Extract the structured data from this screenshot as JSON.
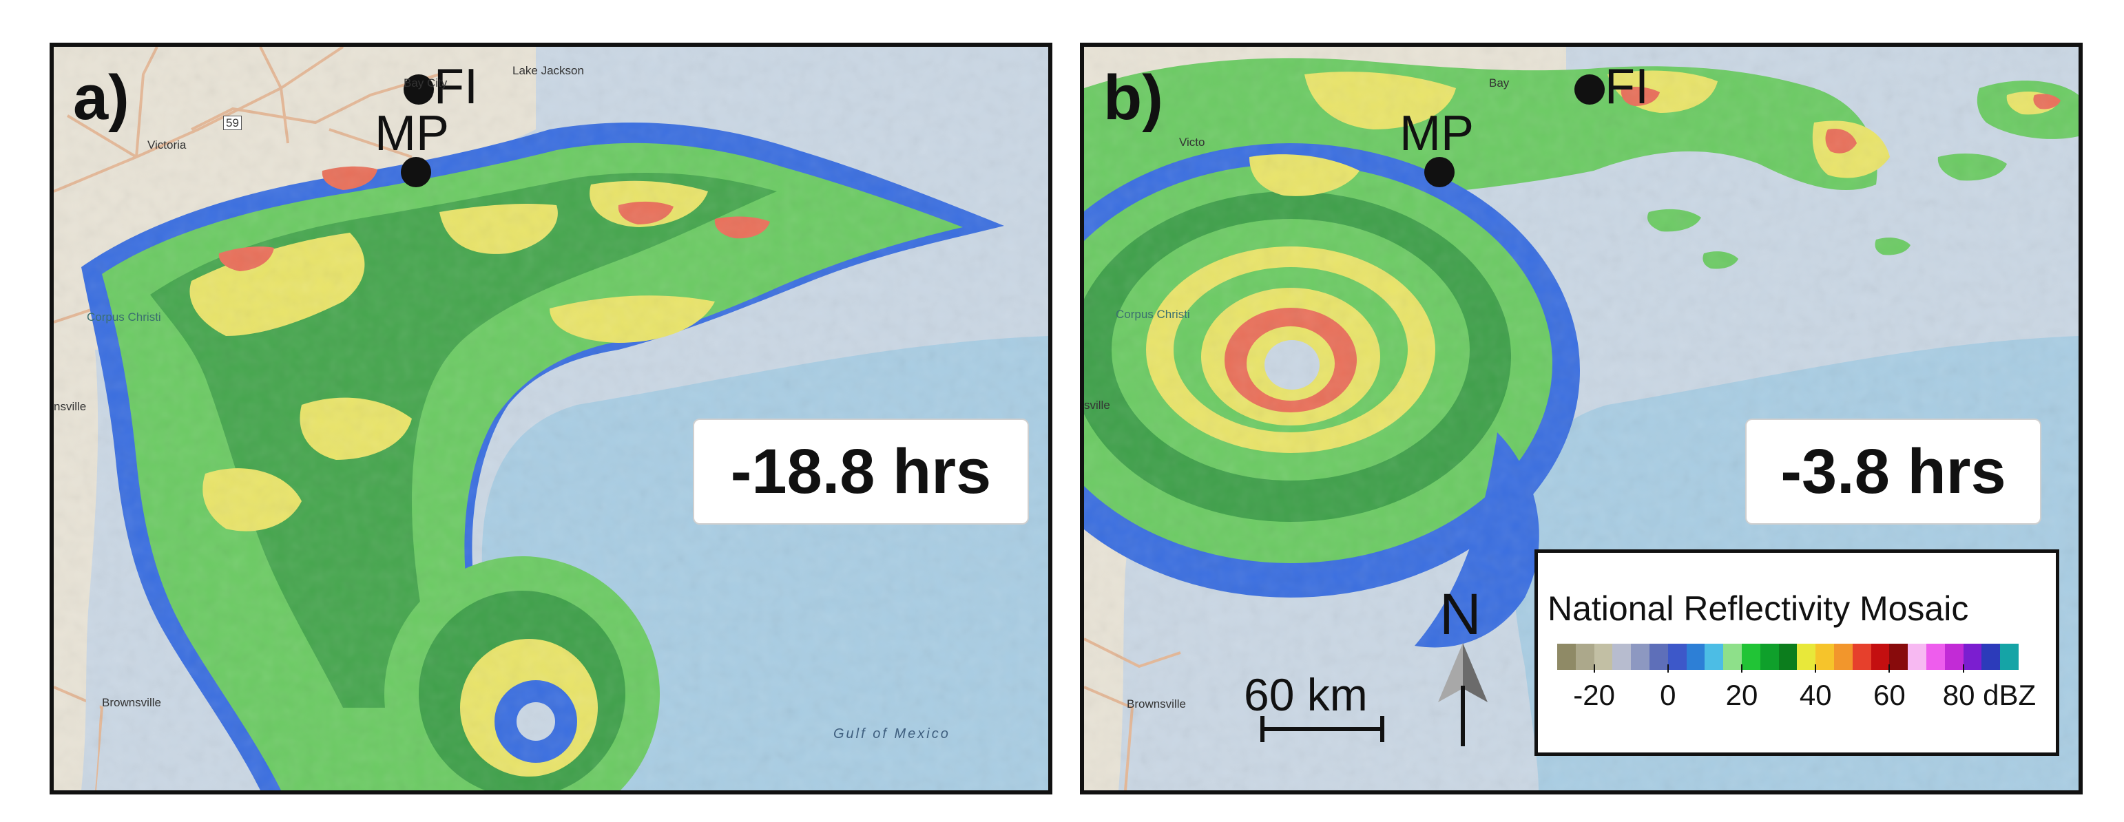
{
  "panels": [
    {
      "label": "a)",
      "time": "-18.8 hrs",
      "sites": [
        {
          "name": "MP"
        },
        {
          "name": "FI"
        }
      ],
      "towns": [
        "Bay City",
        "Lake Jackson",
        "Victoria",
        "59",
        "Corpus Christi",
        "nsville",
        "Brownsville"
      ],
      "water_label": "Gulf of Mexico"
    },
    {
      "label": "b)",
      "time": "-3.8 hrs",
      "sites": [
        {
          "name": "MP"
        },
        {
          "name": "FI"
        }
      ],
      "towns": [
        "Bay",
        "Victo",
        "Corpus Christi",
        "sville",
        "Brownsville"
      ]
    }
  ],
  "legend": {
    "title": "National Reflectivity Mosaic",
    "ticks": [
      "-20",
      "0",
      "20",
      "40",
      "60",
      "80 dBZ"
    ],
    "tick_values": [
      -20,
      0,
      20,
      40,
      60,
      80
    ],
    "range": [
      -30,
      95
    ],
    "colors": [
      "#8f8a66",
      "#aca88b",
      "#c2bfa4",
      "#b7bccf",
      "#8d98c1",
      "#5e6fb9",
      "#3d58c9",
      "#2d7fd6",
      "#4cbde5",
      "#8ee08a",
      "#21c436",
      "#0fa02b",
      "#0c7d1d",
      "#e8e83a",
      "#f6c42b",
      "#f2962c",
      "#e6402c",
      "#c40f10",
      "#880b0c",
      "#f7b9f2",
      "#ee5ded",
      "#c22bd6",
      "#7b1ed0",
      "#2c3bba",
      "#15a4a6"
    ]
  },
  "scale_bar": {
    "label": "60 km"
  },
  "north": {
    "label": "N"
  },
  "colors": {
    "ocean": "#a9cde3",
    "ocean_shelf": "#cad7e4",
    "land": "#e8e3d6",
    "road": "#e4b796",
    "radar_green": "#6ccb64",
    "radar_dark_green": "#3fa04a",
    "radar_blue": "#3b6fe0",
    "radar_yellow": "#e9e46a",
    "radar_red": "#e9705a"
  }
}
